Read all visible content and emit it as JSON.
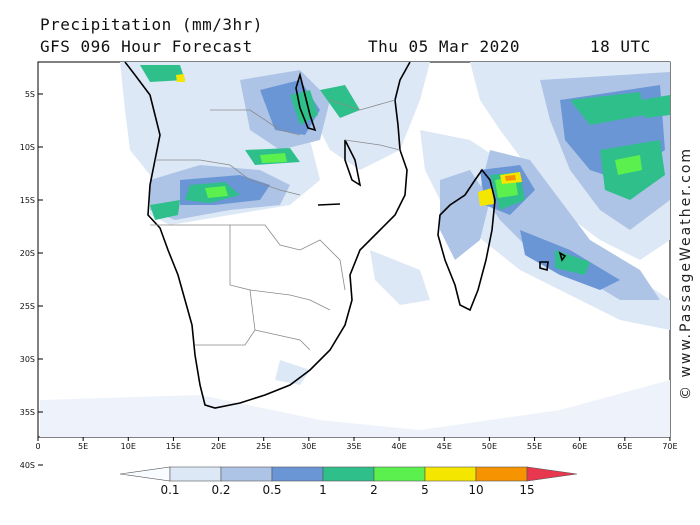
{
  "header": {
    "title": "Precipitation (mm/3hr)",
    "subtitle": "GFS 096 Hour Forecast",
    "date": "Thu 05 Mar 2020",
    "time": "18 UTC"
  },
  "map": {
    "lat_ticks": [
      "5S",
      "10S",
      "15S",
      "20S",
      "25S",
      "30S",
      "35S",
      "40S"
    ],
    "lon_ticks": [
      "0",
      "5E",
      "10E",
      "15E",
      "20E",
      "25E",
      "30E",
      "35E",
      "40E",
      "45E",
      "50E",
      "55E",
      "60E",
      "65E",
      "70E"
    ]
  },
  "legend": {
    "levels": [
      "0.1",
      "0.2",
      "0.5",
      "1",
      "2",
      "5",
      "10",
      "15"
    ],
    "colors": [
      "#f8fbff",
      "#dde8f6",
      "#aec4e6",
      "#6b96d6",
      "#2fbf8a",
      "#5cf04e",
      "#f5e600",
      "#f59300",
      "#e8384f"
    ]
  },
  "watermark": "© www.PassageWeather.com"
}
